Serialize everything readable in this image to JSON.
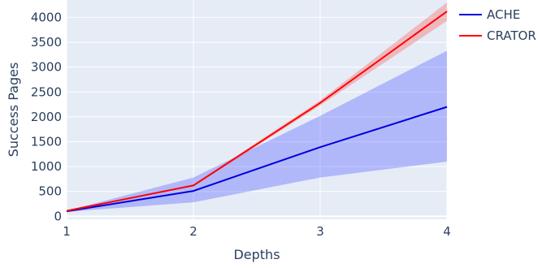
{
  "chart_data": {
    "type": "line",
    "xlabel": "Depths",
    "ylabel": "Success Pages",
    "x": [
      1,
      2,
      3,
      4
    ],
    "xlim": [
      1,
      4
    ],
    "ylim": [
      -60,
      4350
    ],
    "xticks": [
      "1",
      "2",
      "3",
      "4"
    ],
    "yticks": [
      0,
      500,
      1000,
      1500,
      2000,
      2500,
      3000,
      3500,
      4000
    ],
    "grid": true,
    "legend_position": "top-right",
    "series": [
      {
        "name": "ACHE",
        "color": "#0000dd",
        "band_color": "rgba(80,90,255,0.35)",
        "values": [
          100,
          510,
          1390,
          2200
        ],
        "lower": [
          90,
          280,
          780,
          1100
        ],
        "upper": [
          110,
          780,
          2020,
          3330
        ]
      },
      {
        "name": "CRATOR",
        "color": "#ff0000",
        "band_color": "rgba(255,90,90,0.35)",
        "values": [
          110,
          620,
          2280,
          4120
        ],
        "lower": [
          100,
          600,
          2230,
          3930
        ],
        "upper": [
          120,
          640,
          2330,
          4300
        ]
      }
    ]
  }
}
